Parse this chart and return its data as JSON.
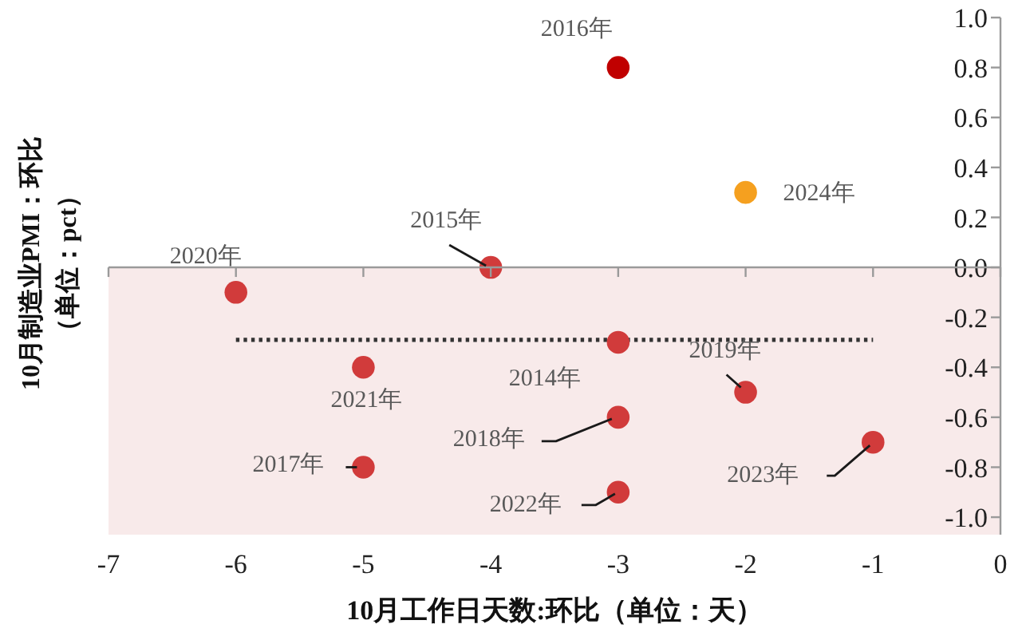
{
  "chart_data": {
    "type": "scatter",
    "xlabel": "10月工作日天数:环比（单位：天）",
    "ylabel": "10月制造业PMI：环比（单位：pct）",
    "xlim": [
      -7,
      0
    ],
    "xticks": [
      -7,
      -6,
      -5,
      -4,
      -3,
      -2,
      -1,
      0
    ],
    "ylim": [
      -1.07,
      1.0
    ],
    "yticks": [
      {
        "value": -1,
        "label": "-1.0"
      },
      -0.8,
      -0.6,
      -0.4,
      -0.2,
      {
        "value": 0,
        "label": "0.0"
      },
      0.2,
      0.4,
      0.6,
      0.8,
      {
        "value": 1,
        "label": "1.0"
      }
    ],
    "marker": "circle",
    "series": [
      {
        "x": [
          -3,
          -4,
          -3,
          -5,
          -3,
          -2,
          -6,
          -5,
          -3,
          -1,
          -2
        ],
        "values": [
          -0.3,
          0.0,
          0.8,
          -0.8,
          -0.6,
          -0.5,
          -0.1,
          -0.4,
          -0.9,
          -0.7,
          0.3
        ],
        "colors": [
          "#d13b3b",
          "#d13b3b",
          "#c00000",
          "#d13b3b",
          "#d13b3b",
          "#d13b3b",
          "#d13b3b",
          "#d13b3b",
          "#d13b3b",
          "#d13b3b",
          "#f5a01f"
        ]
      },
      {
        "type": "line",
        "x": [
          -6,
          -1
        ],
        "values": [
          -0.29,
          -0.29
        ],
        "color": "#333333",
        "line_style": "dotted",
        "marker": "none"
      }
    ],
    "bands": [
      {
        "axis": "y",
        "from": -1.07,
        "to": 0,
        "color": "#f8eaea"
      }
    ],
    "annotations": [
      {
        "text": "2014年",
        "x": -3,
        "y": -0.3
      },
      {
        "text": "2015年",
        "x": -4,
        "y": 0.0
      },
      {
        "text": "2016年",
        "x": -3,
        "y": 0.8
      },
      {
        "text": "2017年",
        "x": -5,
        "y": -0.8
      },
      {
        "text": "2018年",
        "x": -3,
        "y": -0.6
      },
      {
        "text": "2019年",
        "x": -2,
        "y": -0.5
      },
      {
        "text": "2020年",
        "x": -6,
        "y": -0.1
      },
      {
        "text": "2021年",
        "x": -5,
        "y": -0.4
      },
      {
        "text": "2022年",
        "x": -3,
        "y": -0.9
      },
      {
        "text": "2023年",
        "x": -1,
        "y": -0.7
      },
      {
        "text": "2024年",
        "x": -2,
        "y": 0.3
      }
    ]
  }
}
